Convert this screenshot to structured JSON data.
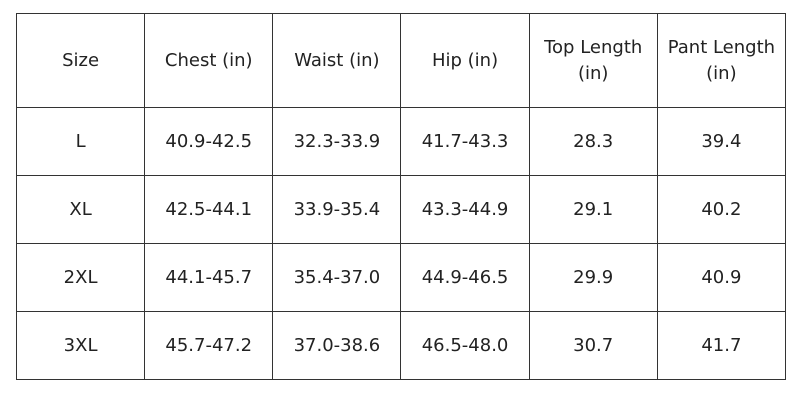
{
  "table": {
    "header": [
      "Size",
      "Chest (in)",
      "Waist (in)",
      "Hip (in)",
      "Top Length (in)",
      "Pant Length (in)"
    ],
    "rows": [
      [
        "L",
        "40.9-42.5",
        "32.3-33.9",
        "41.7-43.3",
        "28.3",
        "39.4"
      ],
      [
        "XL",
        "42.5-44.1",
        "33.9-35.4",
        "43.3-44.9",
        "29.1",
        "40.2"
      ],
      [
        "2XL",
        "44.1-45.7",
        "35.4-37.0",
        "44.9-46.5",
        "29.9",
        "40.9"
      ],
      [
        "3XL",
        "45.7-47.2",
        "37.0-38.6",
        "46.5-48.0",
        "30.7",
        "41.7"
      ]
    ]
  }
}
